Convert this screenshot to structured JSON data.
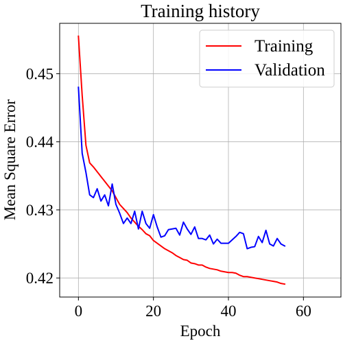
{
  "chart_data": {
    "type": "line",
    "title": "Training history",
    "xlabel": "Epoch",
    "ylabel": "Mean Square Error",
    "xlim": [
      -5,
      70
    ],
    "ylim": [
      0.4172,
      0.4574
    ],
    "xticks": [
      0,
      20,
      40,
      60
    ],
    "yticks": [
      0.42,
      0.43,
      0.44,
      0.45
    ],
    "x_tick_labels": [
      "0",
      "20",
      "40",
      "60"
    ],
    "y_tick_labels": [
      "0.42",
      "0.43",
      "0.44",
      "0.45"
    ],
    "grid": true,
    "legend_position": "top-right",
    "series": [
      {
        "name": "Training",
        "color": "#ff0000",
        "x": [
          0,
          1,
          2,
          3,
          4,
          5,
          6,
          7,
          8,
          9,
          10,
          11,
          12,
          13,
          14,
          15,
          16,
          17,
          18,
          19,
          20,
          21,
          22,
          23,
          24,
          25,
          26,
          27,
          28,
          29,
          30,
          31,
          32,
          33,
          34,
          35,
          36,
          37,
          38,
          39,
          40,
          41,
          42,
          43,
          44,
          45,
          46,
          47,
          48,
          49,
          50,
          51,
          52,
          53,
          54,
          55
        ],
        "values": [
          0.4555,
          0.4468,
          0.4395,
          0.4369,
          0.4363,
          0.4356,
          0.4349,
          0.4342,
          0.4335,
          0.4328,
          0.4318,
          0.4308,
          0.4302,
          0.4296,
          0.4288,
          0.4282,
          0.4276,
          0.4271,
          0.4265,
          0.4262,
          0.4255,
          0.4251,
          0.4247,
          0.4243,
          0.424,
          0.4237,
          0.4233,
          0.423,
          0.4227,
          0.4226,
          0.4222,
          0.4221,
          0.4219,
          0.4219,
          0.4216,
          0.4214,
          0.4213,
          0.4212,
          0.421,
          0.4209,
          0.4208,
          0.4208,
          0.4207,
          0.4204,
          0.4202,
          0.4202,
          0.4201,
          0.42,
          0.4199,
          0.4198,
          0.4197,
          0.4196,
          0.4195,
          0.4194,
          0.4192,
          0.4191
        ]
      },
      {
        "name": "Validation",
        "color": "#0000ff",
        "x": [
          0,
          1,
          2,
          3,
          4,
          5,
          6,
          7,
          8,
          9,
          10,
          11,
          12,
          13,
          14,
          15,
          16,
          17,
          18,
          19,
          20,
          21,
          22,
          23,
          24,
          25,
          26,
          27,
          28,
          29,
          30,
          31,
          32,
          33,
          34,
          35,
          36,
          37,
          38,
          39,
          40,
          41,
          42,
          43,
          44,
          45,
          46,
          47,
          48,
          49,
          50,
          51,
          52,
          53,
          54,
          55
        ],
        "values": [
          0.448,
          0.4383,
          0.4355,
          0.4322,
          0.4318,
          0.4331,
          0.4313,
          0.4322,
          0.4306,
          0.4338,
          0.4308,
          0.4295,
          0.428,
          0.4288,
          0.428,
          0.4298,
          0.4272,
          0.4298,
          0.428,
          0.4273,
          0.4293,
          0.4275,
          0.426,
          0.4262,
          0.4271,
          0.4272,
          0.4273,
          0.4263,
          0.4282,
          0.4272,
          0.4264,
          0.4275,
          0.4258,
          0.4258,
          0.4256,
          0.4263,
          0.425,
          0.4257,
          0.4251,
          0.4251,
          0.4251,
          0.4256,
          0.4261,
          0.4267,
          0.4265,
          0.4243,
          0.4245,
          0.4246,
          0.4261,
          0.4252,
          0.427,
          0.425,
          0.4247,
          0.4258,
          0.425,
          0.4247
        ]
      }
    ]
  }
}
